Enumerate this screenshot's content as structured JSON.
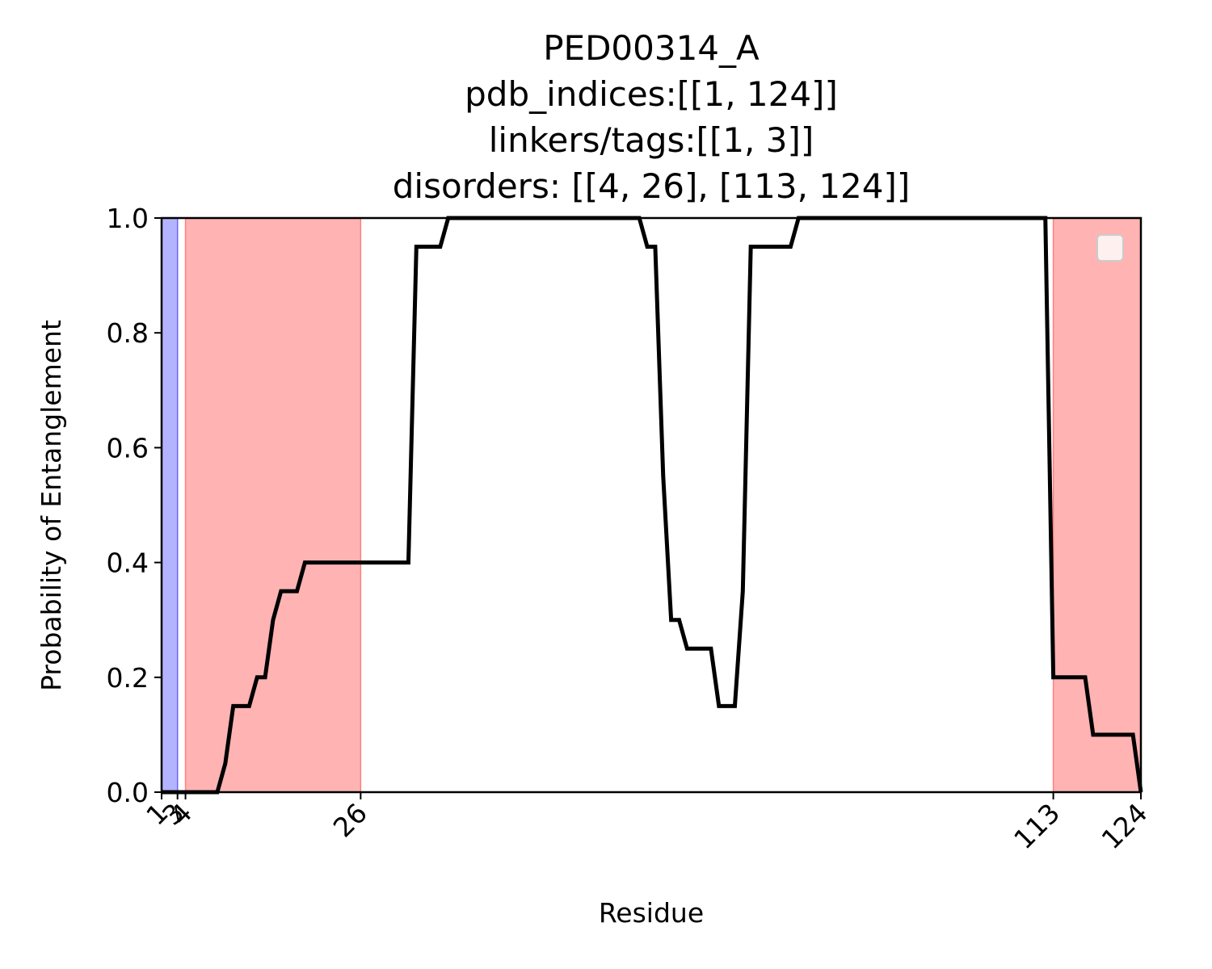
{
  "chart_data": {
    "type": "line",
    "title_lines": [
      "PED00314_A",
      "pdb_indices:[[1, 124]]",
      "linkers/tags:[[1, 3]]",
      "disorders: [[4, 26], [113, 124]]"
    ],
    "xlabel": "Residue",
    "ylabel": "Probability of Entanglement",
    "xlim": [
      1,
      124
    ],
    "ylim": [
      0,
      1
    ],
    "x_ticks": [
      1,
      3,
      4,
      26,
      113,
      124
    ],
    "x_tick_labels": [
      "1",
      "3",
      "4",
      "26",
      "113",
      "124"
    ],
    "y_ticks": [
      0,
      0.2,
      0.4,
      0.6,
      0.8,
      1.0
    ],
    "y_tick_labels": [
      "0.0",
      "0.2",
      "0.4",
      "0.6",
      "0.8",
      "1.0"
    ],
    "grid": false,
    "legend": {
      "location": "upper right",
      "entries": []
    },
    "shaded_regions": [
      {
        "kind": "linker/tag",
        "range": [
          1,
          3
        ],
        "color": "#b3b3ff"
      },
      {
        "kind": "disorder",
        "range": [
          4,
          26
        ],
        "color": "#ffb3b3"
      },
      {
        "kind": "disorder",
        "range": [
          113,
          124
        ],
        "color": "#ffb3b3"
      }
    ],
    "series": [
      {
        "color": "#000000",
        "points": [
          [
            1,
            0.0
          ],
          [
            2,
            0.0
          ],
          [
            3,
            0.0
          ],
          [
            4,
            0.0
          ],
          [
            5,
            0.0
          ],
          [
            6,
            0.0
          ],
          [
            7,
            0.0
          ],
          [
            8,
            0.0
          ],
          [
            9,
            0.05
          ],
          [
            10,
            0.15
          ],
          [
            11,
            0.15
          ],
          [
            12,
            0.15
          ],
          [
            13,
            0.2
          ],
          [
            14,
            0.2
          ],
          [
            15,
            0.3
          ],
          [
            16,
            0.35
          ],
          [
            17,
            0.35
          ],
          [
            18,
            0.35
          ],
          [
            19,
            0.4
          ],
          [
            20,
            0.4
          ],
          [
            21,
            0.4
          ],
          [
            22,
            0.4
          ],
          [
            23,
            0.4
          ],
          [
            24,
            0.4
          ],
          [
            25,
            0.4
          ],
          [
            26,
            0.4
          ],
          [
            27,
            0.4
          ],
          [
            28,
            0.4
          ],
          [
            29,
            0.4
          ],
          [
            30,
            0.4
          ],
          [
            31,
            0.4
          ],
          [
            32,
            0.4
          ],
          [
            33,
            0.95
          ],
          [
            34,
            0.95
          ],
          [
            35,
            0.95
          ],
          [
            36,
            0.95
          ],
          [
            37,
            1.0
          ],
          [
            38,
            1.0
          ],
          [
            39,
            1.0
          ],
          [
            40,
            1.0
          ],
          [
            41,
            1.0
          ],
          [
            42,
            1.0
          ],
          [
            43,
            1.0
          ],
          [
            44,
            1.0
          ],
          [
            45,
            1.0
          ],
          [
            46,
            1.0
          ],
          [
            47,
            1.0
          ],
          [
            48,
            1.0
          ],
          [
            49,
            1.0
          ],
          [
            50,
            1.0
          ],
          [
            51,
            1.0
          ],
          [
            52,
            1.0
          ],
          [
            53,
            1.0
          ],
          [
            54,
            1.0
          ],
          [
            55,
            1.0
          ],
          [
            56,
            1.0
          ],
          [
            57,
            1.0
          ],
          [
            58,
            1.0
          ],
          [
            59,
            1.0
          ],
          [
            60,
            1.0
          ],
          [
            61,
            1.0
          ],
          [
            62,
            0.95
          ],
          [
            63,
            0.95
          ],
          [
            64,
            0.55
          ],
          [
            65,
            0.3
          ],
          [
            66,
            0.3
          ],
          [
            67,
            0.25
          ],
          [
            68,
            0.25
          ],
          [
            69,
            0.25
          ],
          [
            70,
            0.25
          ],
          [
            71,
            0.15
          ],
          [
            72,
            0.15
          ],
          [
            73,
            0.15
          ],
          [
            74,
            0.35
          ],
          [
            75,
            0.95
          ],
          [
            76,
            0.95
          ],
          [
            77,
            0.95
          ],
          [
            78,
            0.95
          ],
          [
            79,
            0.95
          ],
          [
            80,
            0.95
          ],
          [
            81,
            1.0
          ],
          [
            82,
            1.0
          ],
          [
            83,
            1.0
          ],
          [
            84,
            1.0
          ],
          [
            85,
            1.0
          ],
          [
            86,
            1.0
          ],
          [
            87,
            1.0
          ],
          [
            88,
            1.0
          ],
          [
            89,
            1.0
          ],
          [
            90,
            1.0
          ],
          [
            91,
            1.0
          ],
          [
            92,
            1.0
          ],
          [
            93,
            1.0
          ],
          [
            94,
            1.0
          ],
          [
            95,
            1.0
          ],
          [
            96,
            1.0
          ],
          [
            97,
            1.0
          ],
          [
            98,
            1.0
          ],
          [
            99,
            1.0
          ],
          [
            100,
            1.0
          ],
          [
            101,
            1.0
          ],
          [
            102,
            1.0
          ],
          [
            103,
            1.0
          ],
          [
            104,
            1.0
          ],
          [
            105,
            1.0
          ],
          [
            106,
            1.0
          ],
          [
            107,
            1.0
          ],
          [
            108,
            1.0
          ],
          [
            109,
            1.0
          ],
          [
            110,
            1.0
          ],
          [
            111,
            1.0
          ],
          [
            112,
            1.0
          ],
          [
            113,
            0.2
          ],
          [
            114,
            0.2
          ],
          [
            115,
            0.2
          ],
          [
            116,
            0.2
          ],
          [
            117,
            0.2
          ],
          [
            118,
            0.1
          ],
          [
            119,
            0.1
          ],
          [
            120,
            0.1
          ],
          [
            121,
            0.1
          ],
          [
            122,
            0.1
          ],
          [
            123,
            0.1
          ],
          [
            124,
            0.0
          ]
        ]
      }
    ]
  }
}
